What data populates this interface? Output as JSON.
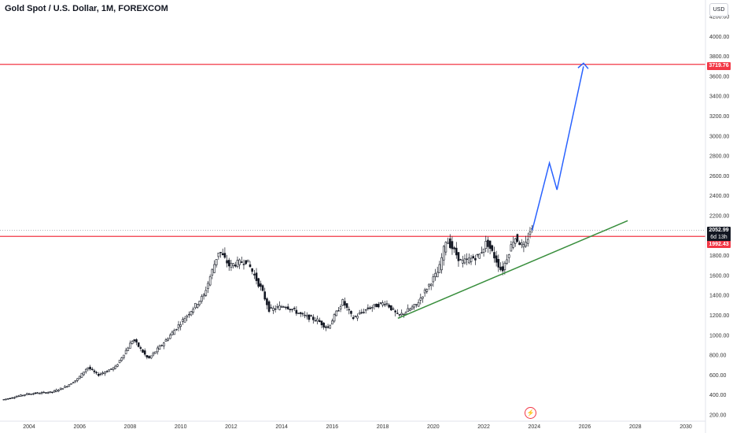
{
  "chart_data": {
    "type": "candlestick",
    "title": "Gold Spot / U.S. Dollar, 1M, FOREXCOM",
    "currency": "USD",
    "y_ticks": [
      200,
      400,
      600,
      800,
      1000,
      1200,
      1400,
      1600,
      1800,
      2000,
      2200,
      2400,
      2600,
      2800,
      3000,
      3200,
      3400,
      3600,
      3800,
      4000,
      4200
    ],
    "y_tick_labels": [
      "200.00",
      "400.00",
      "600.00",
      "800.00",
      "1000.00",
      "1200.00",
      "1400.00",
      "1600.00",
      "1800.00",
      "2000.00",
      "2200.00",
      "2400.00",
      "2600.00",
      "2800.00",
      "3000.00",
      "3200.00",
      "3400.00",
      "3600.00",
      "3800.00",
      "4000.00",
      "4200.00"
    ],
    "x_ticks": [
      "2004",
      "2006",
      "2008",
      "2010",
      "2012",
      "2014",
      "2016",
      "2018",
      "2020",
      "2022",
      "2024",
      "2026",
      "2028",
      "2030"
    ],
    "price_trend": [
      [
        2003.0,
        350
      ],
      [
        2004.0,
        410
      ],
      [
        2005.0,
        430
      ],
      [
        2005.5,
        480
      ],
      [
        2006.0,
        560
      ],
      [
        2006.4,
        680
      ],
      [
        2006.8,
        600
      ],
      [
        2007.5,
        680
      ],
      [
        2008.2,
        960
      ],
      [
        2008.8,
        760
      ],
      [
        2009.5,
        950
      ],
      [
        2010.0,
        1100
      ],
      [
        2010.5,
        1250
      ],
      [
        2011.0,
        1400
      ],
      [
        2011.6,
        1850
      ],
      [
        2012.0,
        1700
      ],
      [
        2012.7,
        1750
      ],
      [
        2013.3,
        1450
      ],
      [
        2013.6,
        1250
      ],
      [
        2014.2,
        1300
      ],
      [
        2014.9,
        1200
      ],
      [
        2015.5,
        1150
      ],
      [
        2015.9,
        1070
      ],
      [
        2016.5,
        1340
      ],
      [
        2016.9,
        1170
      ],
      [
        2017.5,
        1270
      ],
      [
        2018.2,
        1330
      ],
      [
        2018.7,
        1190
      ],
      [
        2019.4,
        1300
      ],
      [
        2019.9,
        1500
      ],
      [
        2020.3,
        1650
      ],
      [
        2020.6,
        1970
      ],
      [
        2021.2,
        1730
      ],
      [
        2021.9,
        1800
      ],
      [
        2022.2,
        1940
      ],
      [
        2022.8,
        1640
      ],
      [
        2023.3,
        1990
      ],
      [
        2023.7,
        1870
      ],
      [
        2023.92,
        2052.99
      ]
    ],
    "last_price": "2052.99",
    "last_price_countdown": "6d 13h",
    "horizontal_levels": [
      {
        "value": 3719.76,
        "label": "3719.76",
        "color": "#f23645"
      },
      {
        "value": 1992.43,
        "label": "1992.43",
        "color": "#f23645"
      }
    ],
    "support_trendline": {
      "start": [
        2018.6,
        1170
      ],
      "end": [
        2027.7,
        2150
      ],
      "color": "#388e3c"
    },
    "projection_path": {
      "points": [
        [
          2023.92,
          2052.99
        ],
        [
          2024.6,
          2730
        ],
        [
          2024.9,
          2460
        ],
        [
          2025.95,
          3700
        ]
      ],
      "color": "#2962ff"
    },
    "ylim": [
      150,
      4300
    ],
    "xlim": [
      2003.0,
      2030.7
    ]
  }
}
